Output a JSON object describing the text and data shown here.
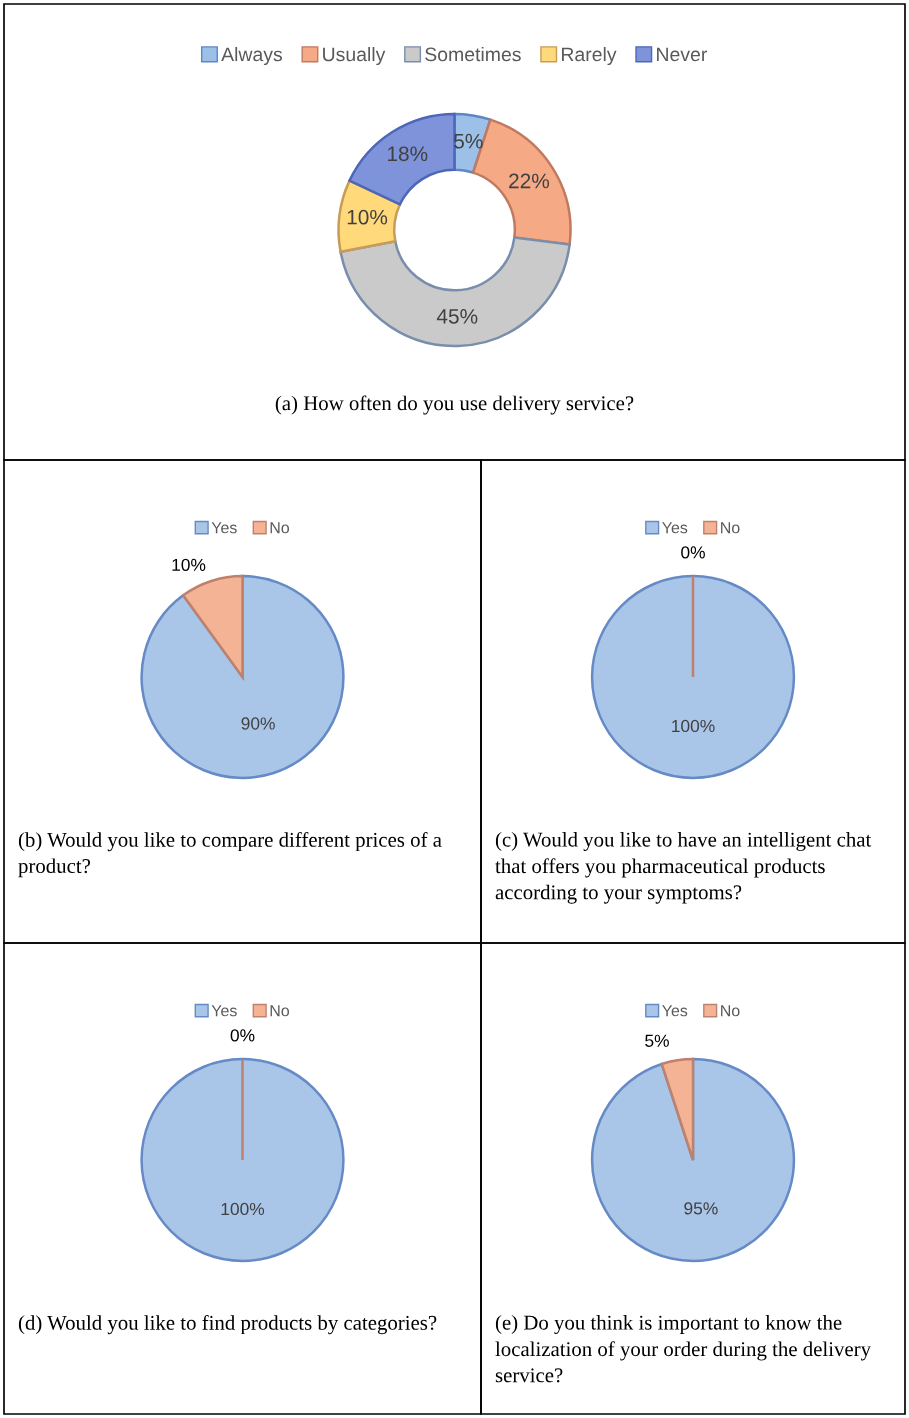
{
  "chart_data": [
    {
      "type": "donut",
      "categories": [
        "Always",
        "Usually",
        "Sometimes",
        "Rarely",
        "Never"
      ],
      "values": [
        5,
        22,
        45,
        10,
        18
      ],
      "colors": [
        "#9dc0e8",
        "#f5a985",
        "#cacaca",
        "#ffd97a",
        "#7f93da"
      ],
      "value_labels": [
        "5%",
        "22%",
        "45%",
        "10%",
        "18%"
      ],
      "legend": "top",
      "title": "(a) How often do you use delivery service?"
    },
    {
      "type": "pie",
      "categories": [
        "Yes",
        "No"
      ],
      "values": [
        90,
        10
      ],
      "colors": [
        "#a9c5e8",
        "#f5b396"
      ],
      "value_labels": [
        "90%",
        "10%"
      ],
      "legend": "top",
      "title": "(b) Would you like to compare different prices of a product?"
    },
    {
      "type": "pie",
      "categories": [
        "Yes",
        "No"
      ],
      "values": [
        100,
        0
      ],
      "colors": [
        "#a9c5e8",
        "#f5b396"
      ],
      "value_labels": [
        "100%",
        "0%"
      ],
      "legend": "top",
      "title": "(c) Would you like to have an intelligent chat that offers you pharmaceutical products according to your symptoms?"
    },
    {
      "type": "pie",
      "categories": [
        "Yes",
        "No"
      ],
      "values": [
        100,
        0
      ],
      "colors": [
        "#a9c5e8",
        "#f5b396"
      ],
      "value_labels": [
        "100%",
        "0%"
      ],
      "legend": "top",
      "title": "(d) Would you like to find products by categories?"
    },
    {
      "type": "pie",
      "categories": [
        "Yes",
        "No"
      ],
      "values": [
        95,
        5
      ],
      "colors": [
        "#a9c5e8",
        "#f5b396"
      ],
      "value_labels": [
        "95%",
        "5%"
      ],
      "legend": "top",
      "title": "(e) Do you think is important to know the localization of your order during the delivery service?"
    }
  ]
}
